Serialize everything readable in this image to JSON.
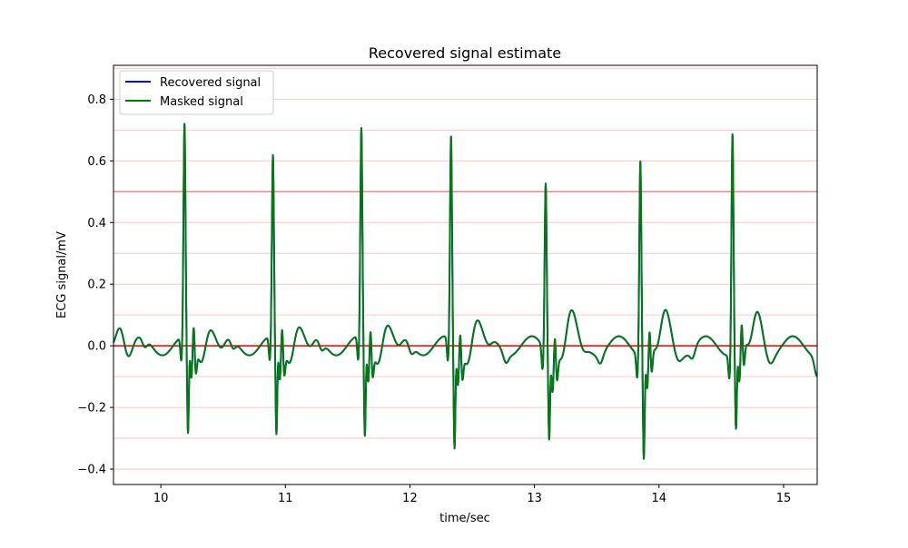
{
  "chart_data": {
    "type": "line",
    "title": "Recovered signal estimate",
    "xlabel": "time/sec",
    "ylabel": "ECG signal/mV",
    "xlim": [
      9.62,
      15.27
    ],
    "ylim": [
      -0.45,
      0.91
    ],
    "xticks": [
      10,
      11,
      12,
      13,
      14,
      15
    ],
    "yticks": [
      -0.4,
      -0.2,
      0.0,
      0.2,
      0.4,
      0.6,
      0.8
    ],
    "ytick_labels": [
      "−0.4",
      "−0.2",
      "0.0",
      "0.2",
      "0.4",
      "0.6",
      "0.8"
    ],
    "legend_position": "top-left",
    "grid": "horizontal light-red lines",
    "reference_lines": [
      {
        "y": 0.0,
        "color": "#e00000"
      },
      {
        "y": 0.5,
        "color": "#f08080"
      }
    ],
    "beats": [
      {
        "peak_time": 10.19,
        "peak": 0.69,
        "s_depth": -0.31,
        "t_amp": 0.08
      },
      {
        "peak_time": 10.9,
        "peak": 0.59,
        "s_depth": -0.31,
        "t_amp": 0.085
      },
      {
        "peak_time": 11.61,
        "peak": 0.68,
        "s_depth": -0.31,
        "t_amp": 0.085
      },
      {
        "peak_time": 12.33,
        "peak": 0.66,
        "s_depth": -0.34,
        "t_amp": 0.09
      },
      {
        "peak_time": 13.09,
        "peak": 0.54,
        "s_depth": -0.28,
        "t_amp": 0.095
      },
      {
        "peak_time": 13.85,
        "peak": 0.63,
        "s_depth": -0.34,
        "t_amp": 0.095
      },
      {
        "peak_time": 14.59,
        "peak": 0.71,
        "s_depth": -0.26,
        "t_amp": 0.105
      }
    ],
    "series": [
      {
        "name": "Recovered signal",
        "color": "#0000ff"
      },
      {
        "name": "Masked signal",
        "color": "#008000"
      }
    ]
  }
}
